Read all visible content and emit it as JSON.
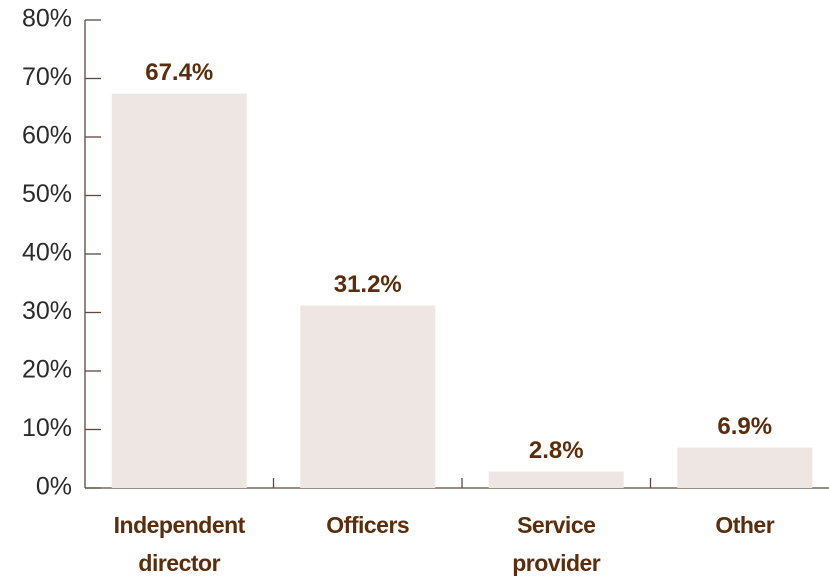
{
  "chart_data": {
    "type": "bar",
    "categories": [
      "Independent director",
      "Officers",
      "Service provider",
      "Other"
    ],
    "values": [
      67.4,
      31.2,
      2.8,
      6.9
    ],
    "value_labels": [
      "67.4%",
      "31.2%",
      "2.8%",
      "6.9%"
    ],
    "color": "#ede6e3",
    "ylim": [
      0,
      80
    ],
    "yticks": [
      {
        "value": 0,
        "label": "0%"
      },
      {
        "value": 10,
        "label": "10%"
      },
      {
        "value": 20,
        "label": "20%"
      },
      {
        "value": 30,
        "label": "30%"
      },
      {
        "value": 40,
        "label": "40%"
      },
      {
        "value": 50,
        "label": "50%"
      },
      {
        "value": 60,
        "label": "60%"
      },
      {
        "value": 70,
        "label": "70%"
      },
      {
        "value": 80,
        "label": "80%"
      }
    ],
    "grid": false
  }
}
